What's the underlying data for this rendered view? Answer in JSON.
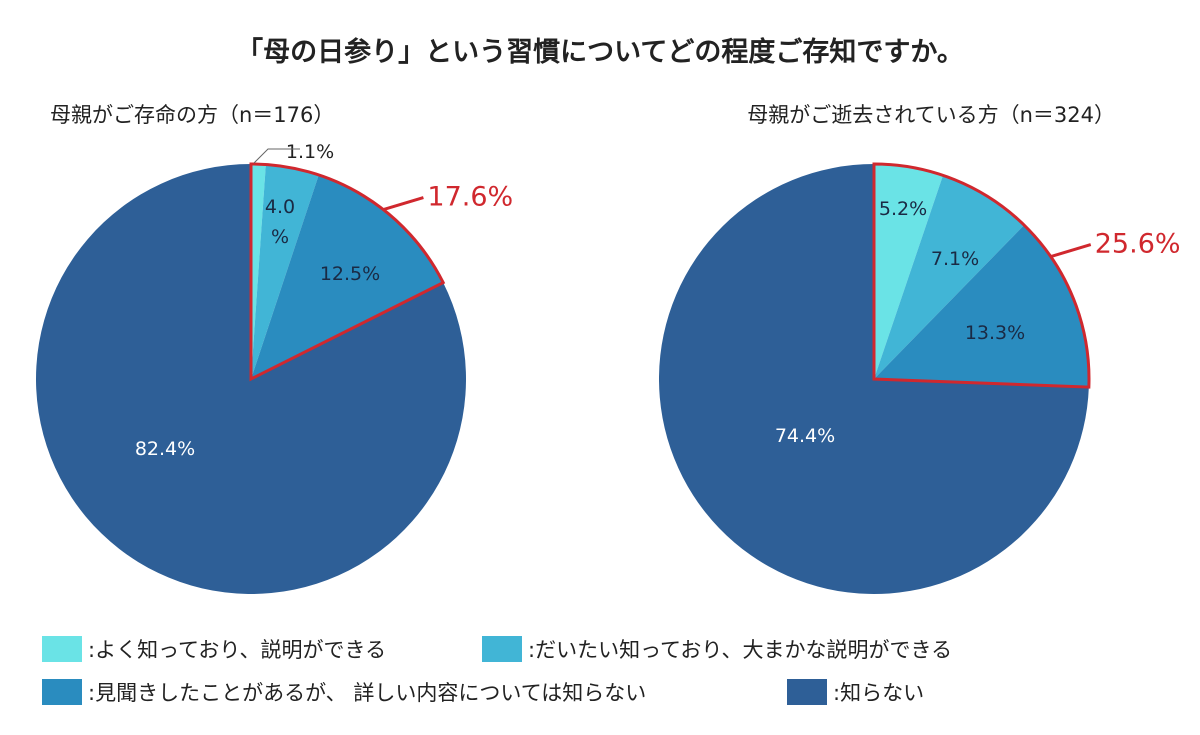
{
  "chart_data": [
    {
      "type": "pie",
      "title": "母親がご存命の方（n＝176）",
      "slices": [
        {
          "label": ":よく知っており、説明ができる",
          "value": 1.1,
          "text": "1.1%"
        },
        {
          "label": ":だいたい知っており、大まかな説明ができる",
          "value": 4.0,
          "text": "4.0 %"
        },
        {
          "label": ":見聞きしたことがあるが、 詳しい内容については知らない",
          "value": 12.5,
          "text": "12.5%"
        },
        {
          "label": ":知らない",
          "value": 82.4,
          "text": "82.4%"
        }
      ],
      "highlight": {
        "text": "17.6%",
        "value": 17.6
      }
    },
    {
      "type": "pie",
      "title": "母親がご逝去されている方（n＝324）",
      "slices": [
        {
          "label": ":よく知っており、説明ができる",
          "value": 5.2,
          "text": "5.2%"
        },
        {
          "label": ":だいたい知っており、大まかな説明ができる",
          "value": 7.1,
          "text": "7.1%"
        },
        {
          "label": ":見聞きしたことがあるが、 詳しい内容については知らない",
          "value": 13.3,
          "text": "13.3%"
        },
        {
          "label": ":知らない",
          "value": 74.4,
          "text": "74.4%"
        }
      ],
      "highlight": {
        "text": "25.6%",
        "value": 25.6
      }
    }
  ],
  "title": "「母の日参り」という習慣についてどの程度ご存知ですか。",
  "legend": [
    {
      "label": ":よく知っており、説明ができる",
      "color": "#6ae3e6"
    },
    {
      "label": ":だいたい知っており、大まかな説明ができる",
      "color": "#41b5d6"
    },
    {
      "label": ":見聞きしたことがあるが、 詳しい内容については知らない",
      "color": "#2a8cbf"
    },
    {
      "label": ":知らない",
      "color": "#2e5f97"
    }
  ],
  "highlight_color": "#d0282e"
}
